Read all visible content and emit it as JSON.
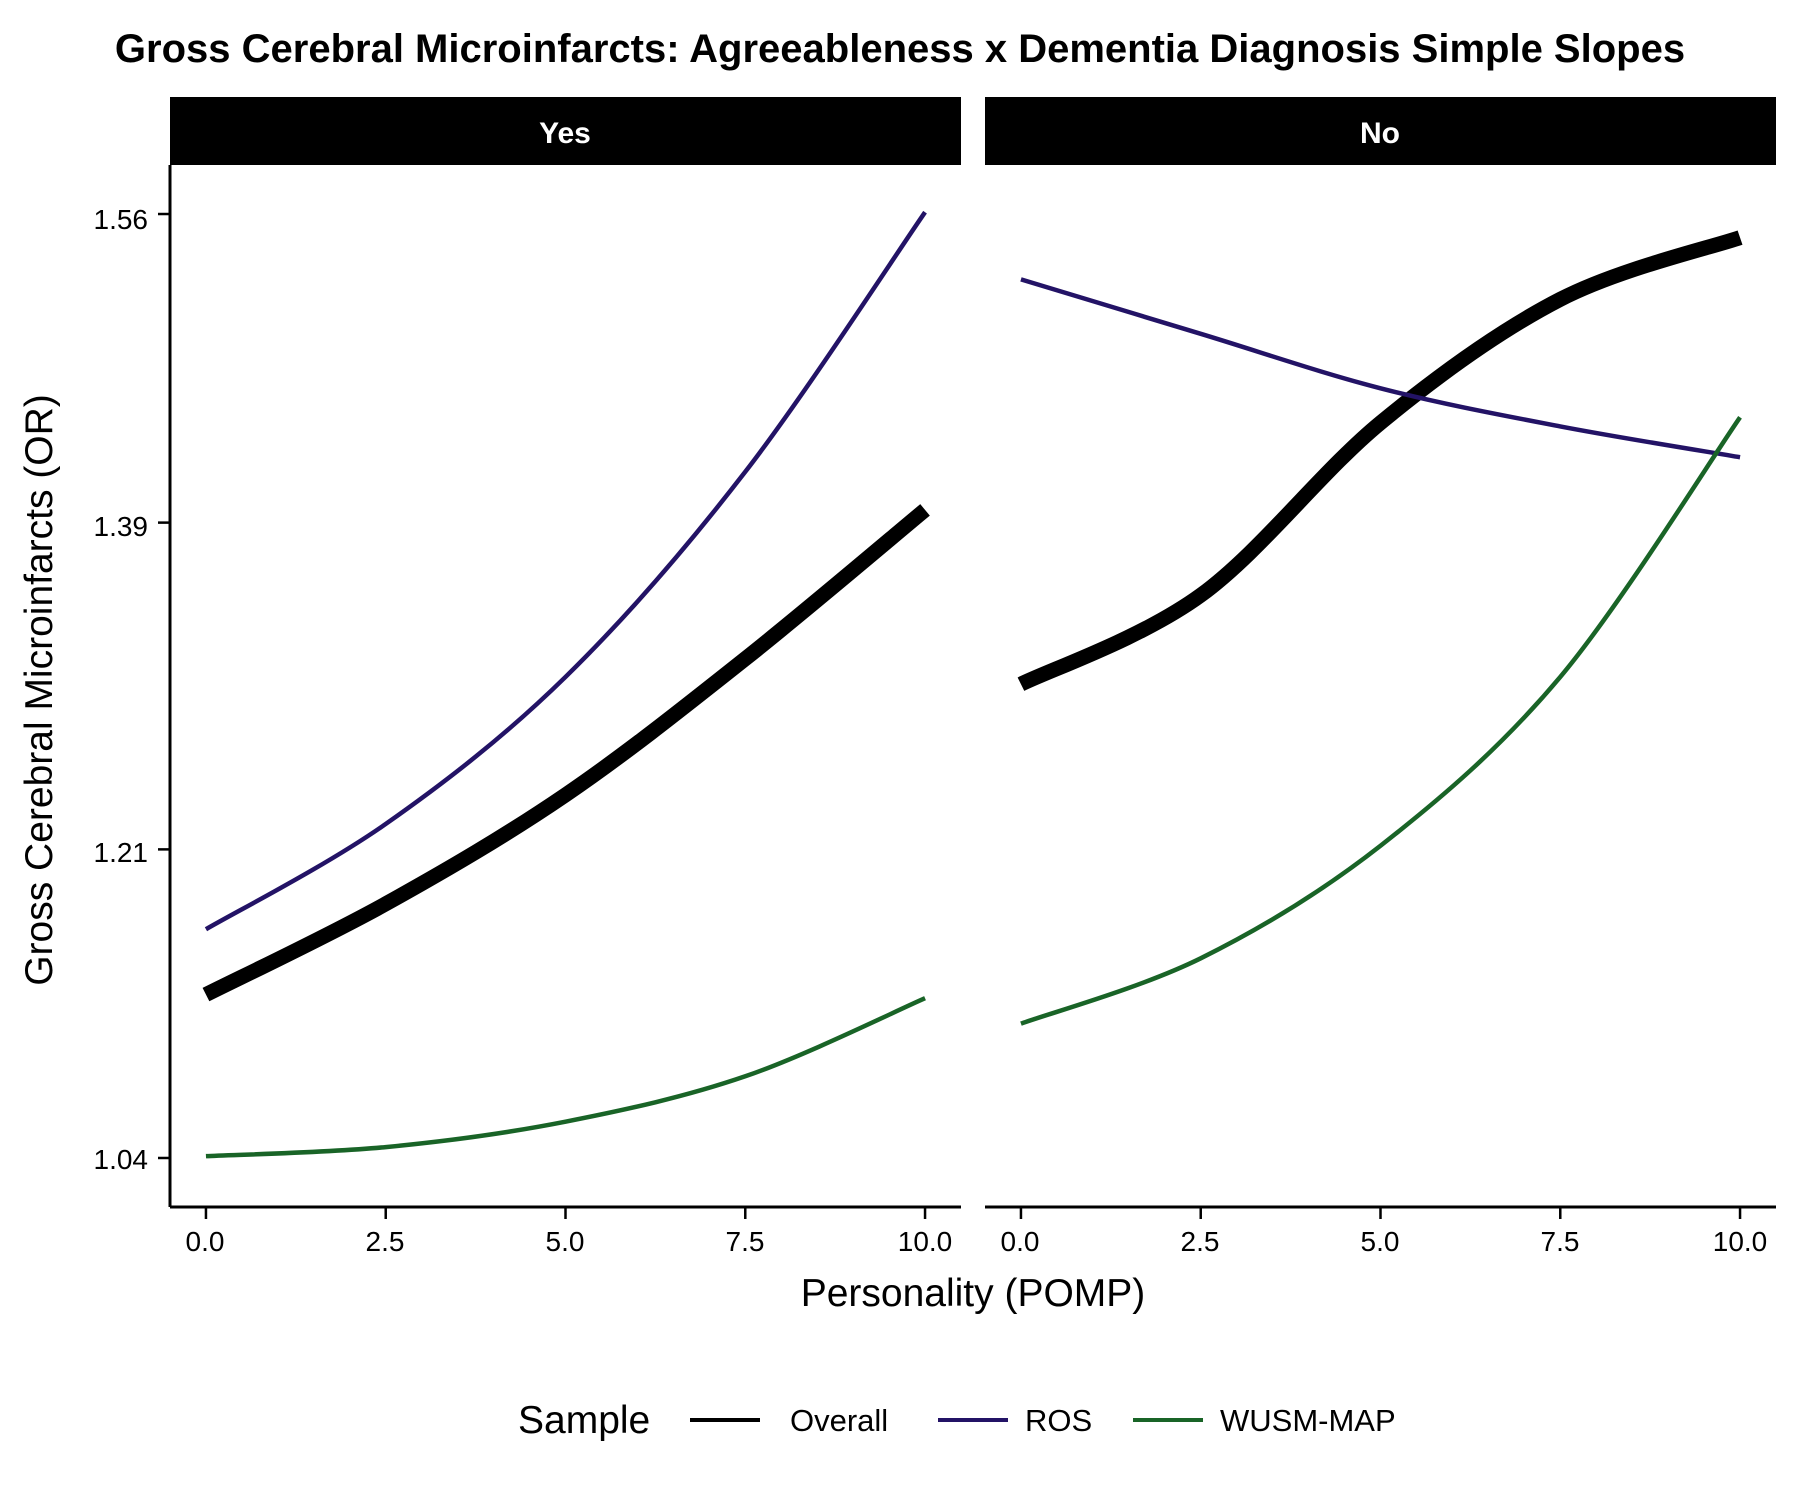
{
  "chart_data": {
    "type": "line",
    "title": "Gross Cerebral Microinfarcts: Agreeableness x Dementia Diagnosis Simple Slopes",
    "xlabel": "Personality (POMP)",
    "ylabel": "Gross Cerebral Microinfarcts (OR)",
    "xlim": [
      -0.5,
      10.5
    ],
    "ylim": [
      1.013,
      1.587
    ],
    "x_ticks": [
      0,
      2.5,
      5,
      7.5,
      10
    ],
    "x_tick_labels": [
      "0.0",
      "2.5",
      "5.0",
      "7.5",
      "10.0"
    ],
    "y_ticks": [
      1.04,
      1.21,
      1.39,
      1.56
    ],
    "y_tick_labels": [
      "1.04",
      "1.21",
      "1.39",
      "1.56"
    ],
    "grid": false,
    "legend": {
      "title": "Sample",
      "position": "bottom",
      "entries": [
        "Overall",
        "ROS",
        "WUSM-MAP"
      ]
    },
    "colors": {
      "Overall": "#000000",
      "ROS": "#231366",
      "WUSM-MAP": "#196427"
    },
    "panels": [
      {
        "label": "Yes",
        "series": [
          {
            "name": "Overall",
            "x": [
              0,
              2.5,
              5,
              7.5,
              10
            ],
            "y": [
              1.13,
              1.18,
              1.24,
              1.315,
              1.397
            ]
          },
          {
            "name": "ROS",
            "x": [
              0,
              2.5,
              5,
              7.5,
              10
            ],
            "y": [
              1.166,
              1.224,
              1.305,
              1.418,
              1.561
            ]
          },
          {
            "name": "WUSM-MAP",
            "x": [
              0,
              2.5,
              5,
              7.5,
              10
            ],
            "y": [
              1.041,
              1.046,
              1.06,
              1.085,
              1.128
            ]
          }
        ]
      },
      {
        "label": "No",
        "series": [
          {
            "name": "Overall",
            "x": [
              0,
              2.5,
              5,
              7.5,
              10
            ],
            "y": [
              1.301,
              1.35,
              1.445,
              1.513,
              1.547
            ]
          },
          {
            "name": "ROS",
            "x": [
              0,
              2.5,
              5,
              7.5,
              10
            ],
            "y": [
              1.524,
              1.494,
              1.464,
              1.443,
              1.426
            ]
          },
          {
            "name": "WUSM-MAP",
            "x": [
              0,
              2.5,
              5,
              7.5,
              10
            ],
            "y": [
              1.114,
              1.15,
              1.212,
              1.305,
              1.448
            ]
          }
        ]
      }
    ]
  }
}
